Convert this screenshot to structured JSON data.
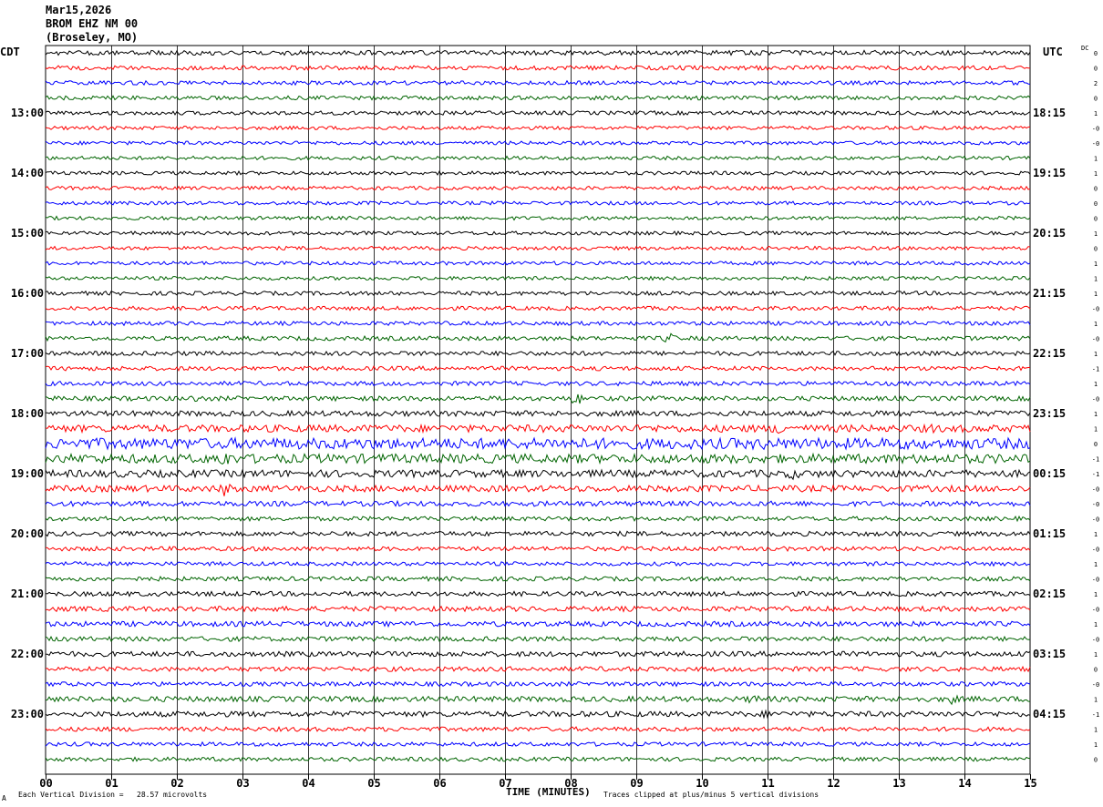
{
  "header": {
    "date": "Mar15,2026",
    "station": "BROM EHZ NM 00",
    "location": "(Broseley, MO)"
  },
  "left_tz": "CDT",
  "right_tz": "UTC",
  "dc_label": "DC",
  "footer": {
    "scale_note": "Each Vertical Division =   28.57 microvolts",
    "corner_mark": "A",
    "clip_note": "Traces clipped at plus/minus 5 vertical divisions"
  },
  "chart_data": {
    "type": "line",
    "title": "",
    "xlabel": "TIME (MINUTES)",
    "ylabel": "",
    "x_ticks": [
      "00",
      "01",
      "02",
      "03",
      "04",
      "05",
      "06",
      "07",
      "08",
      "09",
      "10",
      "11",
      "12",
      "13",
      "14",
      "15"
    ],
    "xlim": [
      0,
      15
    ],
    "grid": true,
    "trace_colors": [
      "#000000",
      "#ff0000",
      "#0000ff",
      "#006400"
    ],
    "left_hour_labels": [
      "13:00",
      "14:00",
      "15:00",
      "16:00",
      "17:00",
      "18:00",
      "19:00",
      "20:00",
      "21:00",
      "22:00",
      "23:00"
    ],
    "right_hour_labels": [
      "18:15",
      "19:15",
      "20:15",
      "21:15",
      "22:15",
      "23:15",
      "00:15",
      "01:15",
      "02:15",
      "03:15",
      "04:15"
    ],
    "dc_offsets": [
      "0",
      "0",
      "2",
      "0",
      "1",
      "-0",
      "-0",
      "1",
      "1",
      "0",
      "0",
      "0",
      "1",
      "0",
      "1",
      "1",
      "1",
      "-0",
      "1",
      "-0",
      "1",
      "-1",
      "1",
      "-0",
      "1",
      "1",
      "0",
      "-1",
      "-1",
      "-0",
      "-0",
      "-0",
      "1",
      "-0",
      "1",
      "-0",
      "1",
      "-0",
      "1",
      "-0",
      "1",
      "0",
      "-0",
      "1",
      "-1",
      "1",
      "1",
      "0"
    ],
    "trace_amplitudes": [
      2.6,
      2.4,
      2.2,
      2.2,
      2.2,
      2.0,
      2.0,
      2.0,
      2.0,
      2.0,
      2.0,
      2.0,
      2.0,
      2.0,
      2.0,
      2.0,
      2.2,
      2.2,
      2.2,
      2.4,
      2.4,
      2.4,
      2.4,
      2.6,
      3.0,
      4.0,
      6.0,
      5.0,
      4.0,
      3.5,
      2.8,
      2.4,
      2.6,
      2.4,
      2.2,
      2.4,
      2.6,
      2.8,
      2.8,
      2.6,
      2.8,
      2.6,
      2.4,
      3.0,
      3.0,
      2.4,
      2.2,
      2.2
    ],
    "events": [
      {
        "trace": 19,
        "minute": 9.5,
        "amplitude": 6
      },
      {
        "trace": 23,
        "minute": 8.1,
        "amplitude": 7
      },
      {
        "trace": 23,
        "minute": 2.3,
        "amplitude": 5
      },
      {
        "trace": 25,
        "minute": 11.2,
        "amplitude": 8
      },
      {
        "trace": 25,
        "minute": 13.5,
        "amplitude": 6
      },
      {
        "trace": 26,
        "minute": 8.0,
        "amplitude": 10
      },
      {
        "trace": 26,
        "minute": 11.0,
        "amplitude": 9
      },
      {
        "trace": 27,
        "minute": 2.7,
        "amplitude": 11
      },
      {
        "trace": 28,
        "minute": 11.4,
        "amplitude": 7
      },
      {
        "trace": 29,
        "minute": 2.7,
        "amplitude": 9
      },
      {
        "trace": 43,
        "minute": 10.8,
        "amplitude": 6
      },
      {
        "trace": 43,
        "minute": 13.8,
        "amplitude": 6
      },
      {
        "trace": 44,
        "minute": 11.0,
        "amplitude": 5
      }
    ]
  }
}
